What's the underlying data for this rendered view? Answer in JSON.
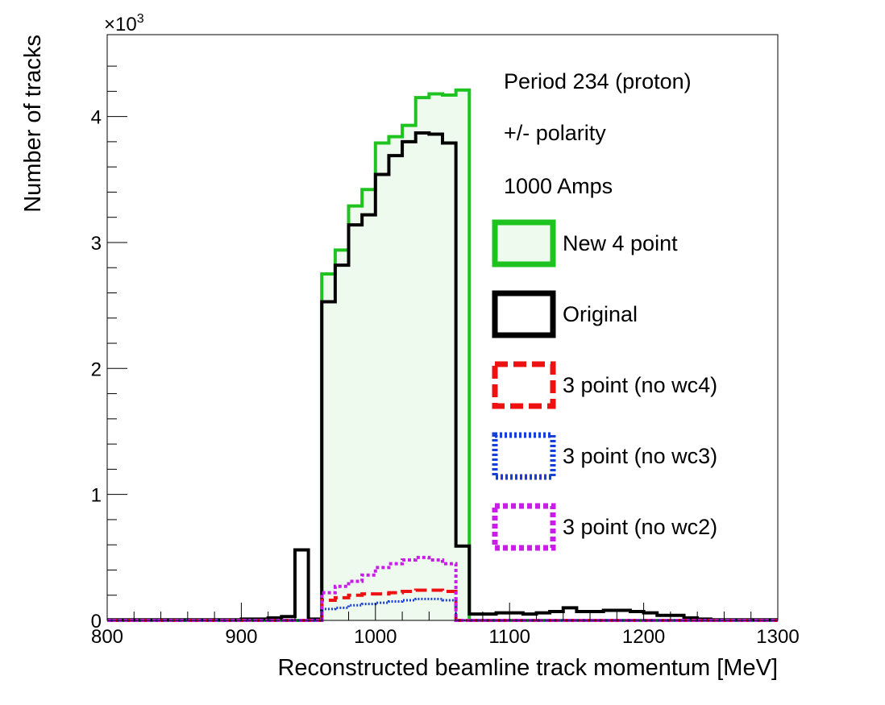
{
  "chart_data": {
    "type": "histogram-step",
    "xlabel": "Reconstructed beamline track momentum [MeV]",
    "ylabel": "Number of tracks",
    "y_multiplier_label": "×10",
    "y_multiplier_exponent": "3",
    "xlim": [
      800,
      1300
    ],
    "ylim": [
      0,
      4.65
    ],
    "x_ticks": [
      {
        "value": 800,
        "label": "800"
      },
      {
        "value": 900,
        "label": "900"
      },
      {
        "value": 1000,
        "label": "1000"
      },
      {
        "value": 1100,
        "label": "1100"
      },
      {
        "value": 1200,
        "label": "1200"
      },
      {
        "value": 1300,
        "label": "1300"
      }
    ],
    "y_ticks": [
      {
        "value": 0,
        "label": "0"
      },
      {
        "value": 1,
        "label": "1"
      },
      {
        "value": 2,
        "label": "2"
      },
      {
        "value": 3,
        "label": "3"
      },
      {
        "value": 4,
        "label": "4"
      }
    ],
    "annotations": [
      "Period 234 (proton)",
      "+/- polarity",
      "1000 Amps"
    ],
    "bin_edges_start": 800,
    "bin_width": 10,
    "series": [
      {
        "name": "New 4 point",
        "color": "#1fc31f",
        "dash": "solid",
        "fill": "#effaef",
        "values": [
          0,
          0,
          0,
          0,
          0,
          0,
          0,
          0,
          0,
          0,
          0,
          0,
          0,
          0,
          0,
          0,
          2.75,
          2.94,
          3.29,
          3.42,
          3.79,
          3.84,
          3.93,
          4.15,
          4.18,
          4.17,
          4.21,
          0,
          0,
          0,
          0,
          0,
          0,
          0,
          0,
          0,
          0,
          0,
          0,
          0,
          0,
          0,
          0,
          0,
          0,
          0,
          0,
          0,
          0,
          0
        ]
      },
      {
        "name": "Original",
        "color": "#000000",
        "dash": "solid",
        "fill": "none",
        "values": [
          0.005,
          0.005,
          0.005,
          0.005,
          0.005,
          0.005,
          0.005,
          0.005,
          0.005,
          0.005,
          0.01,
          0.01,
          0.02,
          0.03,
          0.56,
          0.01,
          2.53,
          2.82,
          3.14,
          3.22,
          3.54,
          3.69,
          3.8,
          3.87,
          3.86,
          3.79,
          0.59,
          0.05,
          0.05,
          0.06,
          0.06,
          0.05,
          0.06,
          0.07,
          0.1,
          0.07,
          0.07,
          0.08,
          0.08,
          0.07,
          0.06,
          0.04,
          0.04,
          0.02,
          0.01,
          0.005,
          0.005,
          0.005,
          0.005,
          0.005
        ]
      },
      {
        "name": "3 point (no wc4)",
        "color": "#ee1111",
        "dash": "dashed",
        "fill": "none",
        "values": [
          0,
          0,
          0,
          0,
          0,
          0,
          0,
          0,
          0,
          0,
          0,
          0,
          0,
          0,
          0,
          0,
          0.16,
          0.18,
          0.2,
          0.21,
          0.21,
          0.22,
          0.23,
          0.24,
          0.24,
          0.23,
          0,
          0,
          0,
          0,
          0,
          0,
          0,
          0,
          0,
          0,
          0,
          0,
          0,
          0,
          0,
          0,
          0,
          0,
          0,
          0,
          0,
          0,
          0,
          0
        ]
      },
      {
        "name": "3 point (no wc3)",
        "color": "#1740d8",
        "dash": "dotted",
        "fill": "none",
        "values": [
          0,
          0,
          0,
          0,
          0,
          0,
          0,
          0,
          0,
          0,
          0,
          0,
          0,
          0,
          0,
          0,
          0.09,
          0.1,
          0.12,
          0.13,
          0.14,
          0.15,
          0.16,
          0.17,
          0.17,
          0.16,
          0,
          0,
          0,
          0,
          0,
          0,
          0,
          0,
          0,
          0,
          0,
          0,
          0,
          0,
          0,
          0,
          0,
          0,
          0,
          0,
          0,
          0,
          0,
          0
        ]
      },
      {
        "name": "3 point (no wc2)",
        "color": "#c81fe6",
        "dash": "dotted-heavy",
        "fill": "none",
        "values": [
          0,
          0,
          0,
          0,
          0,
          0,
          0,
          0,
          0,
          0,
          0,
          0,
          0,
          0,
          0,
          0,
          0.22,
          0.27,
          0.31,
          0.36,
          0.42,
          0.45,
          0.48,
          0.5,
          0.48,
          0.45,
          0,
          0,
          0,
          0,
          0,
          0,
          0,
          0,
          0,
          0,
          0,
          0,
          0,
          0,
          0,
          0,
          0,
          0,
          0,
          0,
          0,
          0,
          0,
          0
        ]
      }
    ],
    "legend_position": "right"
  }
}
